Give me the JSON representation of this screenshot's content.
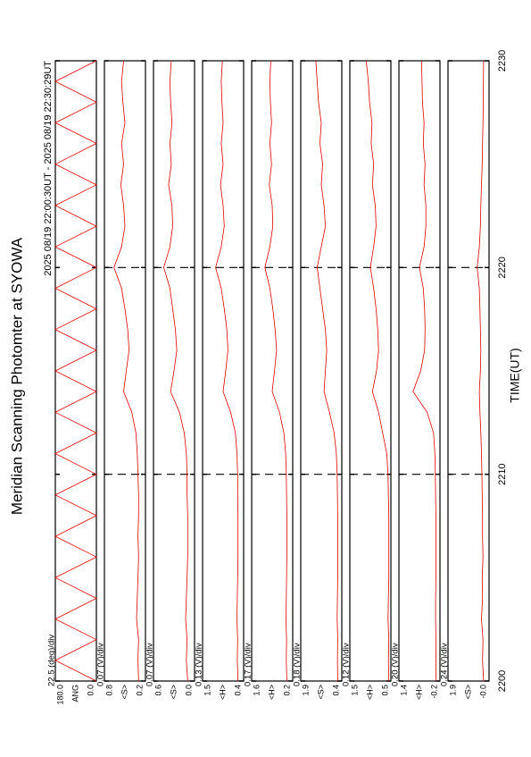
{
  "chart_data": {
    "type": "line",
    "title": "Meridian Scanning Photomter at SYOWA",
    "subtitle": "2025 08/19 22:00:30UT - 2025 08/19 22:30:29UT",
    "x_label": "TIME(UT)",
    "xlim": [
      2200,
      2230
    ],
    "xticks": [
      2200,
      2210,
      2220,
      2230
    ],
    "color": "#e00000",
    "x": [
      2200,
      2201,
      2202,
      2203,
      2204,
      2205,
      2206,
      2207,
      2208,
      2209,
      2210,
      2211,
      2212,
      2213,
      2214,
      2215,
      2216,
      2217,
      2218,
      2219,
      2220,
      2221,
      2222,
      2223,
      2224,
      2225,
      2226,
      2227,
      2228,
      2229,
      2230
    ],
    "panels": [
      {
        "name": "ANG",
        "div_label": "22.5 (deg)/div",
        "ylim": [
          0,
          180
        ],
        "yticks": [
          {
            "value": 0,
            "label": "0.0"
          },
          {
            "value": 180,
            "label": "180.0"
          }
        ],
        "values": [
          0,
          180,
          0,
          180,
          0,
          180,
          0,
          180,
          0,
          180,
          0,
          180,
          0,
          180,
          0,
          180,
          0,
          180,
          0,
          180,
          0,
          180,
          0,
          180,
          0,
          180,
          0,
          180,
          0,
          180,
          0
        ]
      },
      {
        "name": "<S>",
        "div_label": "0.07 (V)/div",
        "ylim": [
          0.2,
          0.8
        ],
        "yticks": [
          0.2,
          0.8
        ],
        "values": [
          0.3,
          0.31,
          0.3,
          0.33,
          0.32,
          0.31,
          0.3,
          0.31,
          0.3,
          0.3,
          0.31,
          0.32,
          0.34,
          0.4,
          0.52,
          0.48,
          0.44,
          0.46,
          0.5,
          0.55,
          0.66,
          0.55,
          0.5,
          0.52,
          0.56,
          0.52,
          0.55,
          0.5,
          0.53,
          0.55,
          0.52
        ]
      },
      {
        "name": "<S>",
        "div_label": "0.07 (V)/div",
        "ylim": [
          0,
          0.6
        ],
        "yticks": [
          {
            "value": 0,
            "label": "0.0"
          },
          0.6
        ],
        "values": [
          0.1,
          0.12,
          0.11,
          0.13,
          0.12,
          0.11,
          0.1,
          0.1,
          0.1,
          0.11,
          0.11,
          0.12,
          0.15,
          0.22,
          0.35,
          0.3,
          0.26,
          0.28,
          0.32,
          0.36,
          0.45,
          0.36,
          0.32,
          0.33,
          0.38,
          0.34,
          0.36,
          0.33,
          0.35,
          0.36,
          0.34
        ]
      },
      {
        "name": "<H>",
        "div_label": "0.13 (V)/div",
        "ylim": [
          0.4,
          1.5
        ],
        "yticks": [
          0.4,
          1.5
        ],
        "values": [
          0.55,
          0.57,
          0.56,
          0.58,
          0.57,
          0.56,
          0.55,
          0.55,
          0.55,
          0.56,
          0.56,
          0.58,
          0.62,
          0.75,
          0.95,
          0.88,
          0.82,
          0.85,
          0.92,
          1.0,
          1.15,
          1.0,
          0.92,
          0.95,
          1.02,
          0.95,
          1.0,
          0.95,
          0.98,
          1.0,
          0.97
        ]
      },
      {
        "name": "<H>",
        "div_label": "0.17 (V)/div",
        "ylim": [
          0.2,
          1.6
        ],
        "yticks": [
          0.2,
          1.6
        ],
        "values": [
          0.4,
          0.42,
          0.41,
          0.43,
          0.42,
          0.41,
          0.4,
          0.4,
          0.4,
          0.41,
          0.42,
          0.44,
          0.5,
          0.65,
          0.9,
          0.82,
          0.75,
          0.8,
          0.88,
          0.98,
          1.15,
          0.98,
          0.88,
          0.9,
          1.0,
          0.92,
          0.98,
          0.92,
          0.96,
          0.98,
          0.95
        ]
      },
      {
        "name": "<S>",
        "div_label": "0.18 (V)/div",
        "ylim": [
          0.4,
          1.9
        ],
        "yticks": [
          0.4,
          1.9
        ],
        "values": [
          0.55,
          0.56,
          0.55,
          0.57,
          0.56,
          0.55,
          0.55,
          0.55,
          0.55,
          0.56,
          0.57,
          0.6,
          0.68,
          0.85,
          1.05,
          1.0,
          0.95,
          1.0,
          1.1,
          1.2,
          1.3,
          1.15,
          1.0,
          1.05,
          1.15,
          1.1,
          1.2,
          1.15,
          1.25,
          1.3,
          1.35
        ]
      },
      {
        "name": "<H>",
        "div_label": "0.12 (V)/div",
        "ylim": [
          0.5,
          1.5
        ],
        "yticks": [
          0.5,
          1.5
        ],
        "values": [
          0.55,
          0.56,
          0.55,
          0.57,
          0.56,
          0.55,
          0.55,
          0.55,
          0.55,
          0.56,
          0.57,
          0.6,
          0.7,
          0.8,
          0.95,
          0.85,
          0.8,
          0.82,
          0.86,
          0.92,
          1.0,
          0.92,
          0.86,
          0.88,
          0.95,
          0.92,
          0.98,
          0.96,
          1.02,
          1.05,
          1.1
        ]
      },
      {
        "name": "<H>",
        "div_label": "0.20 (V)/div",
        "ylim": [
          -0.2,
          1.4
        ],
        "yticks": [
          -0.2,
          1.4
        ],
        "values": [
          -0.05,
          -0.04,
          -0.04,
          -0.03,
          -0.03,
          -0.04,
          -0.04,
          -0.04,
          -0.04,
          -0.03,
          -0.02,
          0.0,
          0.05,
          0.3,
          0.85,
          0.55,
          0.4,
          0.38,
          0.4,
          0.45,
          0.6,
          0.42,
          0.35,
          0.35,
          0.42,
          0.38,
          0.45,
          0.42,
          0.48,
          0.5,
          0.52
        ]
      },
      {
        "name": "<S>",
        "div_label": "0.24 (V)/div",
        "ylim": [
          0,
          1.9
        ],
        "yticks": [
          {
            "value": 0,
            "label": "-0.0"
          },
          1.9
        ],
        "values": [
          0.25,
          0.3,
          0.28,
          0.35,
          0.3,
          0.32,
          0.28,
          0.3,
          0.3,
          0.32,
          0.33,
          0.35,
          0.38,
          0.42,
          0.45,
          0.4,
          0.38,
          0.4,
          0.42,
          0.45,
          0.55,
          0.45,
          0.4,
          0.38,
          0.35,
          0.32,
          0.3,
          0.28,
          0.27,
          0.26,
          0.25
        ]
      }
    ]
  }
}
